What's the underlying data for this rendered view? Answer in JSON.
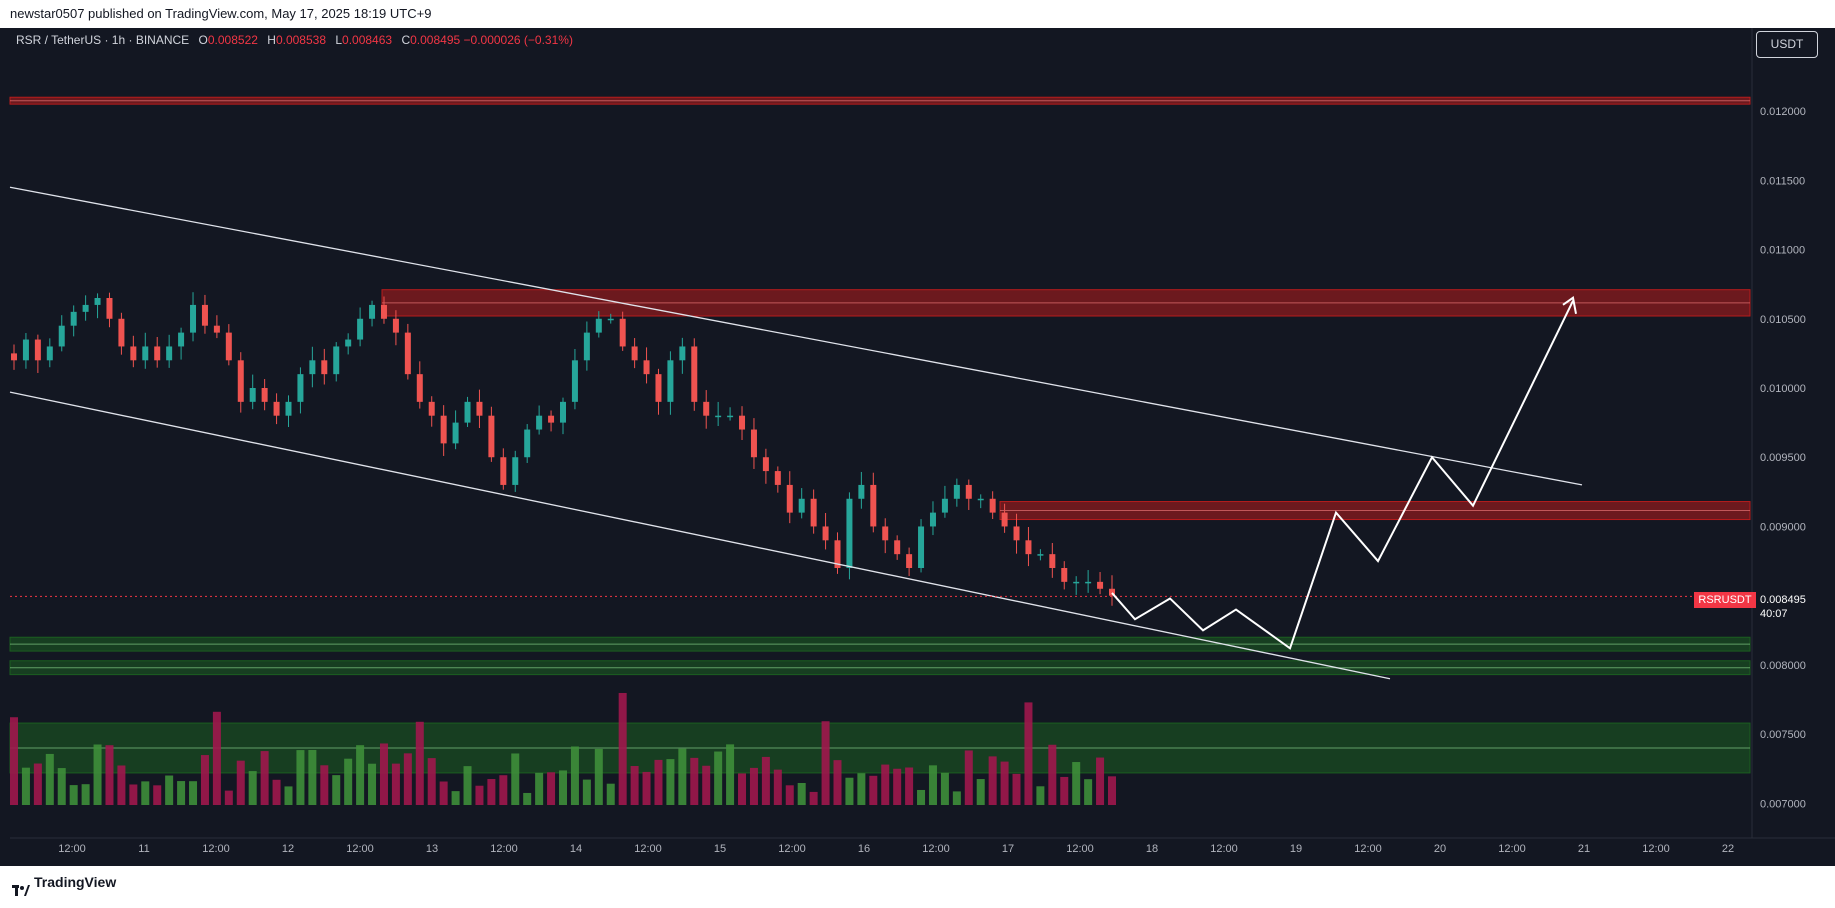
{
  "header": {
    "published": "newstar0507 published on TradingView.com, May 17, 2025 18:19 UTC+9"
  },
  "legend": {
    "symbol": "RSR / TetherUS · 1h · BINANCE",
    "o_label": "O",
    "o": "0.008522",
    "h_label": "H",
    "h": "0.008538",
    "l_label": "L",
    "l": "0.008463",
    "c_label": "C",
    "c": "0.008495",
    "change": "−0.000026 (−0.31%)"
  },
  "unit_button": "USDT",
  "last_price": {
    "symbol": "RSRUSDT",
    "price": "0.008495",
    "countdown": "40:07"
  },
  "footer": {
    "brand": "TradingView"
  },
  "colors": {
    "background": "#131722",
    "up": "#26a69a",
    "down": "#ef5350",
    "vol_up": "#3e8e3a",
    "vol_down": "#a0174d",
    "resistance": "#b71c1c",
    "support": "#1b5e20"
  },
  "chart_data": {
    "type": "candlestick",
    "ylim": [
      0.00675,
      0.0126
    ],
    "y_ticks": [
      "0.012000",
      "0.011500",
      "0.011000",
      "0.010500",
      "0.010000",
      "0.009500",
      "0.009000",
      "0.008000",
      "0.007500",
      "0.007000"
    ],
    "x_ticks": [
      "12:00",
      "11",
      "12:00",
      "12",
      "12:00",
      "13",
      "12:00",
      "14",
      "12:00",
      "15",
      "12:00",
      "16",
      "12:00",
      "17",
      "12:00",
      "18",
      "12:00",
      "19",
      "12:00",
      "20",
      "12:00",
      "21",
      "12:00",
      "22"
    ],
    "close_path": [
      0.0102,
      0.01035,
      0.0102,
      0.0103,
      0.01045,
      0.01055,
      0.0106,
      0.01065,
      0.0105,
      0.0103,
      0.0102,
      0.0103,
      0.0102,
      0.0103,
      0.0104,
      0.0106,
      0.01045,
      0.0104,
      0.0102,
      0.0099,
      0.01,
      0.0099,
      0.0098,
      0.0099,
      0.0101,
      0.0102,
      0.0101,
      0.0103,
      0.01035,
      0.0105,
      0.0106,
      0.0105,
      0.0104,
      0.0101,
      0.0099,
      0.0098,
      0.0096,
      0.00975,
      0.0099,
      0.0098,
      0.0095,
      0.0093,
      0.0095,
      0.0097,
      0.0098,
      0.00975,
      0.0099,
      0.0102,
      0.0104,
      0.0105,
      0.0105,
      0.0103,
      0.0102,
      0.0101,
      0.0099,
      0.0102,
      0.0103,
      0.0099,
      0.0098,
      0.0098,
      0.0098,
      0.0097,
      0.0095,
      0.0094,
      0.0093,
      0.0091,
      0.0092,
      0.009,
      0.0089,
      0.0087,
      0.0092,
      0.0093,
      0.009,
      0.0089,
      0.0088,
      0.0087,
      0.009,
      0.0091,
      0.0092,
      0.0093,
      0.0092,
      0.0092,
      0.0091,
      0.009,
      0.0089,
      0.0088,
      0.0088,
      0.0087,
      0.0086,
      0.0086,
      0.0086,
      0.00855,
      0.0085
    ],
    "zones": [
      {
        "kind": "resistance",
        "from": 0.01205,
        "to": 0.0121
      },
      {
        "kind": "resistance",
        "from": 0.01052,
        "to": 0.01071
      },
      {
        "kind": "resistance",
        "from": 0.00905,
        "to": 0.00918
      },
      {
        "kind": "support",
        "from": 0.0081,
        "to": 0.0082
      },
      {
        "kind": "support",
        "from": 0.00793,
        "to": 0.00803
      },
      {
        "kind": "support",
        "from": 0.00722,
        "to": 0.00758
      }
    ],
    "channel": {
      "upper": [
        [
          0.01145,
          0.0093
        ]
      ],
      "lower": [
        [
          0.00997,
          0.0079
        ]
      ]
    },
    "projection": [
      0.00852,
      0.00833,
      0.00848,
      0.00825,
      0.0084,
      0.00812,
      0.0091,
      0.00875,
      0.0095,
      0.00915,
      0.01063
    ],
    "current_price": 0.008495
  }
}
